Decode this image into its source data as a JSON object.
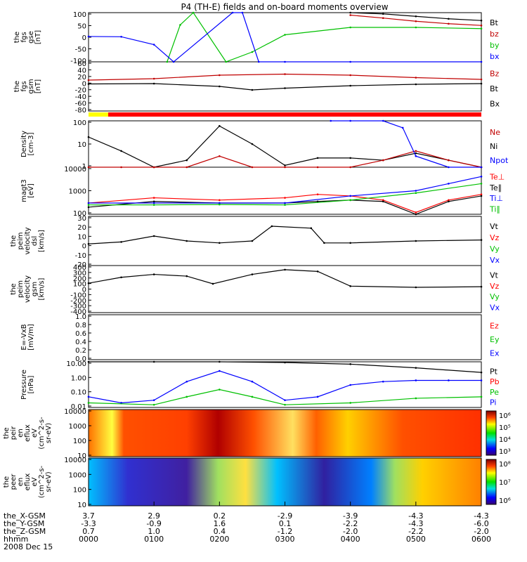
{
  "title": "P4 (TH-E) fields and on-board moments overview",
  "status_bar": {
    "colors": [
      "#ffff00",
      "#ff0000"
    ],
    "split": 0.05
  },
  "panels": [
    {
      "ylabel": [
        "the",
        "fgs",
        "gse",
        "[nT]"
      ],
      "ticks": [
        "100",
        "50",
        "0",
        "-50",
        "-100"
      ],
      "legend": [
        {
          "label": "Bt",
          "color": "#000000"
        },
        {
          "label": "bz",
          "color": "#c00000"
        },
        {
          "label": "by",
          "color": "#00c000"
        },
        {
          "label": "bx",
          "color": "#0000ff"
        }
      ]
    },
    {
      "ylabel": [
        "the",
        "fgs",
        "gsm",
        "[nT]"
      ],
      "ticks": [
        "60",
        "40",
        "20",
        "0",
        "-20",
        "-40",
        "-60",
        "-80"
      ],
      "legend": [
        {
          "label": "Bz",
          "color": "#c00000"
        },
        {
          "label": "Bt",
          "color": "#000000"
        },
        {
          "label": "Bx",
          "color": "#000000"
        }
      ]
    },
    {
      "ylabel": [
        "Density",
        "[cm-3]"
      ],
      "ticks": [
        "100",
        "10",
        "1"
      ],
      "legend": [
        {
          "label": "Ne",
          "color": "#c00000"
        },
        {
          "label": "Ni",
          "color": "#000000"
        },
        {
          "label": "Npot",
          "color": "#0000ff"
        }
      ]
    },
    {
      "ylabel": [
        "magt3",
        "[eV]"
      ],
      "ticks": [
        "10000",
        "1000",
        "100"
      ],
      "legend": [
        {
          "label": "Te⊥",
          "color": "#ff0000"
        },
        {
          "label": "Te∥",
          "color": "#000000"
        },
        {
          "label": "Ti⊥",
          "color": "#0000ff"
        },
        {
          "label": "Ti∥",
          "color": "#00c000"
        }
      ]
    },
    {
      "ylabel": [
        "the",
        "peim",
        "velocity",
        "dsl",
        "[km/s]"
      ],
      "ticks": [
        "30",
        "20",
        "10",
        "0",
        "-10",
        "-20"
      ],
      "legend": [
        {
          "label": "Vt",
          "color": "#000000"
        },
        {
          "label": "Vz",
          "color": "#ff0000"
        },
        {
          "label": "Vy",
          "color": "#00c000"
        },
        {
          "label": "Vx",
          "color": "#0000ff"
        }
      ]
    },
    {
      "ylabel": [
        "the",
        "peim",
        "velocity",
        "gsm",
        "[km/s]"
      ],
      "ticks": [
        "400",
        "300",
        "200",
        "100",
        "0",
        "-100",
        "-200",
        "-300",
        "-400"
      ],
      "legend": [
        {
          "label": "Vt",
          "color": "#000000"
        },
        {
          "label": "Vz",
          "color": "#ff0000"
        },
        {
          "label": "Vy",
          "color": "#00c000"
        },
        {
          "label": "Vx",
          "color": "#0000ff"
        }
      ]
    },
    {
      "ylabel": [
        "E=-VxB",
        "[mV/m]"
      ],
      "ticks": [
        "1.0",
        "0.8",
        "0.6",
        "0.4",
        "0.2",
        "0.0"
      ],
      "legend": [
        {
          "label": "Ez",
          "color": "#ff0000"
        },
        {
          "label": "Ey",
          "color": "#00c000"
        },
        {
          "label": "Ex",
          "color": "#0000ff"
        }
      ]
    },
    {
      "ylabel": [
        "Pressure",
        "[nPa]"
      ],
      "ticks": [
        "10.00",
        "1.00",
        "0.10",
        "0.01"
      ],
      "legend": [
        {
          "label": "Pt",
          "color": "#000000"
        },
        {
          "label": "Pb",
          "color": "#ff0000"
        },
        {
          "label": "Pe",
          "color": "#00c000"
        },
        {
          "label": "Pi",
          "color": "#0000ff"
        }
      ]
    },
    {
      "ylabel": [
        "the",
        "peir",
        "en",
        "eflux",
        "eV",
        "(cm^2-s-",
        "sr-eV)"
      ],
      "ticks": [
        "10000",
        "1000",
        "100",
        "10"
      ],
      "colorbar": {
        "ticks": [
          "10⁶",
          "10⁵",
          "10⁴",
          "10³"
        ]
      }
    },
    {
      "ylabel": [
        "the",
        "peer",
        "en",
        "eflux",
        "eV",
        "(cm^2-s-",
        "sr-eV)"
      ],
      "ticks": [
        "10000",
        "1000",
        "100",
        "10"
      ],
      "colorbar": {
        "ticks": [
          "10⁸",
          "10⁷",
          "10⁶"
        ]
      }
    }
  ],
  "footer": {
    "rows": [
      {
        "label": "the_X-GSM",
        "values": [
          "3.7",
          "2.9",
          "0.2",
          "-2.9",
          "-3.9",
          "-4.3",
          "-4.3"
        ]
      },
      {
        "label": "the_Y-GSM",
        "values": [
          "-3.3",
          "-0.9",
          "1.6",
          "0.1",
          "-2.2",
          "-4.3",
          "-6.0"
        ]
      },
      {
        "label": "the_Z-GSM",
        "values": [
          "0.7",
          "1.0",
          "0.4",
          "-1.2",
          "-2.0",
          "-2.2",
          "-2.0"
        ]
      },
      {
        "label": "hhmm",
        "values": [
          "0000",
          "0100",
          "0200",
          "0300",
          "0400",
          "0500",
          "0600"
        ]
      }
    ],
    "date": "2008 Dec 15"
  },
  "chart_data": {
    "type": "line",
    "title": "P4 (TH-E) fields and on-board moments overview",
    "x_axis": {
      "label": "hhmm",
      "ticks": [
        "0000",
        "0100",
        "0200",
        "0300",
        "0400",
        "0500",
        "0600"
      ],
      "date": "2008 Dec 15"
    },
    "series": [
      {
        "panel": 0,
        "name": "Bt",
        "x_hours": [
          4.0,
          4.5,
          5.0,
          5.5,
          6.0
        ],
        "values": [
          100,
          95,
          85,
          75,
          68
        ]
      },
      {
        "panel": 0,
        "name": "bz",
        "x_hours": [
          4.0,
          4.5,
          5.0,
          5.5,
          6.0
        ],
        "values": [
          90,
          78,
          65,
          55,
          48
        ]
      },
      {
        "panel": 0,
        "name": "by",
        "x_hours": [
          1.2,
          1.4,
          1.6,
          2.1,
          2.5,
          3.0,
          4.0,
          5.0,
          6.0
        ],
        "values": [
          -100,
          50,
          100,
          -100,
          -60,
          10,
          40,
          40,
          35
        ]
      },
      {
        "panel": 0,
        "name": "bx",
        "x_hours": [
          0.0,
          0.5,
          1.0,
          1.3,
          2.2,
          2.35,
          2.6,
          3.0,
          4.0,
          6.0
        ],
        "values": [
          3,
          2,
          -30,
          -100,
          100,
          100,
          -100,
          -100,
          -100,
          -100
        ]
      },
      {
        "panel": 1,
        "name": "Bz",
        "x_hours": [
          0.0,
          1.0,
          2.0,
          3.0,
          4.0,
          5.0,
          6.0
        ],
        "values": [
          8,
          12,
          22,
          25,
          22,
          15,
          10
        ]
      },
      {
        "panel": 1,
        "name": "Bx",
        "x_hours": [
          0.0,
          1.0,
          2.0,
          2.5,
          3.0,
          4.0,
          5.0,
          6.0
        ],
        "values": [
          -3,
          -2,
          -10,
          -20,
          -15,
          -8,
          -4,
          -2
        ]
      },
      {
        "panel": 2,
        "name": "Ni",
        "x_hours": [
          0.0,
          0.5,
          1.0,
          1.5,
          2.0,
          2.5,
          3.0,
          3.5,
          4.0,
          4.5,
          5.0,
          5.5,
          6.0
        ],
        "values": [
          20,
          5,
          0.6,
          2,
          60,
          10,
          1.2,
          2.5,
          2.5,
          2,
          4,
          2,
          1
        ]
      },
      {
        "panel": 2,
        "name": "Ne",
        "x_hours": [
          0.0,
          0.5,
          1.0,
          1.5,
          2.0,
          2.5,
          3.0,
          3.5,
          4.0,
          4.5,
          5.0,
          5.5,
          6.0
        ],
        "values": [
          0.8,
          0.5,
          0.4,
          0.8,
          3,
          1,
          0.4,
          0.3,
          0.4,
          2,
          5,
          2,
          1
        ]
      },
      {
        "panel": 2,
        "name": "Npot",
        "x_hours": [
          3.7,
          4.0,
          4.5,
          4.8,
          5.0,
          5.5,
          6.0
        ],
        "values": [
          100,
          100,
          100,
          50,
          3,
          1,
          0.8
        ]
      },
      {
        "panel": 3,
        "name": "Te⊥",
        "x_hours": [
          0.0,
          1.0,
          2.0,
          3.0,
          3.5,
          4.0,
          4.5,
          5.0,
          5.5,
          6.0
        ],
        "values": [
          300,
          500,
          400,
          500,
          700,
          600,
          400,
          120,
          400,
          700
        ]
      },
      {
        "panel": 3,
        "name": "Te∥",
        "x_hours": [
          0.0,
          1.0,
          2.0,
          3.0,
          3.5,
          4.0,
          4.5,
          5.0,
          5.5,
          6.0
        ],
        "values": [
          200,
          350,
          300,
          300,
          350,
          400,
          350,
          100,
          350,
          600
        ]
      },
      {
        "panel": 3,
        "name": "Ti⊥",
        "x_hours": [
          0.0,
          1.0,
          2.0,
          3.0,
          4.0,
          5.0,
          5.5,
          6.0
        ],
        "values": [
          300,
          300,
          300,
          300,
          600,
          1000,
          2000,
          4000
        ]
      },
      {
        "panel": 3,
        "name": "Ti∥",
        "x_hours": [
          0.0,
          1.0,
          2.0,
          3.0,
          4.0,
          5.0,
          6.0
        ],
        "values": [
          250,
          250,
          260,
          250,
          400,
          800,
          2000
        ]
      },
      {
        "panel": 4,
        "name": "Vt",
        "x_hours": [
          0.0,
          0.5,
          1.0,
          1.5,
          2.0,
          2.5,
          2.8,
          3.4,
          3.6,
          4.0,
          5.0,
          6.0
        ],
        "values": [
          2,
          4,
          10,
          5,
          3,
          5,
          20,
          18,
          3,
          3,
          5,
          6
        ]
      },
      {
        "panel": 5,
        "name": "Vt",
        "x_hours": [
          0.0,
          0.5,
          1.0,
          1.5,
          1.9,
          2.5,
          3.0,
          3.5,
          4.0,
          5.0,
          6.0
        ],
        "values": [
          100,
          200,
          250,
          220,
          90,
          250,
          330,
          300,
          50,
          30,
          40
        ]
      },
      {
        "panel": 7,
        "name": "Pt",
        "x_hours": [
          0.0,
          1.0,
          2.0,
          3.0,
          4.0,
          5.0,
          6.0
        ],
        "values": [
          12,
          10,
          10,
          9,
          7,
          4,
          2
        ]
      },
      {
        "panel": 7,
        "name": "Pi",
        "x_hours": [
          0.0,
          0.5,
          1.0,
          1.5,
          2.0,
          2.5,
          3.0,
          3.5,
          4.0,
          4.5,
          5.0,
          5.5,
          6.0
        ],
        "values": [
          0.05,
          0.02,
          0.03,
          0.5,
          2.5,
          0.5,
          0.03,
          0.05,
          0.3,
          0.5,
          0.6,
          0.6,
          0.6
        ]
      },
      {
        "panel": 7,
        "name": "Pe",
        "x_hours": [
          0.0,
          1.0,
          1.5,
          2.0,
          2.5,
          3.0,
          4.0,
          5.0,
          6.0
        ],
        "values": [
          0.02,
          0.015,
          0.05,
          0.15,
          0.05,
          0.015,
          0.02,
          0.04,
          0.05
        ]
      }
    ]
  }
}
